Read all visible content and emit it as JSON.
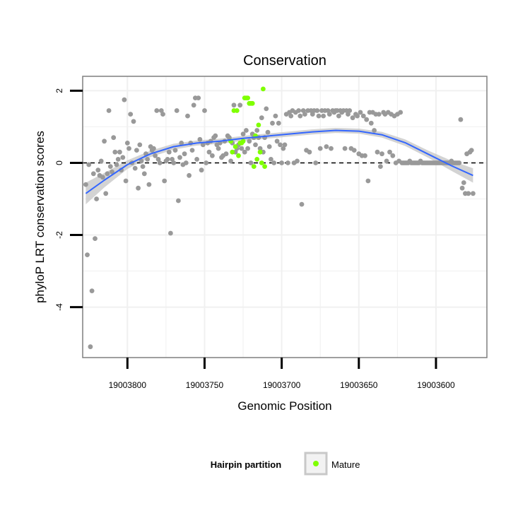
{
  "chart_data": {
    "type": "scatter",
    "title": "Conservation",
    "xlabel": "Genomic Position",
    "ylabel": "phyloP LRT conservation scores",
    "x_reversed": true,
    "xlim": [
      19003829,
      19003567
    ],
    "ylim": [
      -5.4,
      2.4
    ],
    "x_ticks": [
      19003800,
      19003750,
      19003700,
      19003650,
      19003600
    ],
    "x_tick_labels": [
      "19003800",
      "19003750",
      "19003700",
      "19003650",
      "19003600"
    ],
    "y_ticks": [
      2,
      0,
      -2,
      -4
    ],
    "y_tick_labels": [
      "2",
      "0",
      "-2",
      "-4"
    ],
    "grid": true,
    "reference_line": {
      "y": 0,
      "style": "dashed",
      "color": "#000000"
    },
    "colors": {
      "other": "#999999",
      "mature": "#7fff00",
      "smooth": "#3366ff",
      "band": "#c4c4c4",
      "panel_border": "#7f7f7f",
      "grid": "#f0f0f0"
    },
    "legend": {
      "title": "Hairpin partition",
      "position": "bottom",
      "entries": [
        {
          "label": "Mature",
          "color": "#7fff00"
        }
      ]
    },
    "series": [
      {
        "name": "Other",
        "color": "#999999",
        "points": [
          [
            19003827,
            -0.6
          ],
          [
            19003826,
            -2.55
          ],
          [
            19003825,
            -0.05
          ],
          [
            19003824,
            -5.1
          ],
          [
            19003823,
            -3.55
          ],
          [
            19003822,
            -0.3
          ],
          [
            19003821,
            -2.1
          ],
          [
            19003820,
            -1.0
          ],
          [
            19003819,
            -0.2
          ],
          [
            19003818,
            -0.35
          ],
          [
            19003817,
            0.05
          ],
          [
            19003816,
            -0.4
          ],
          [
            19003815,
            0.6
          ],
          [
            19003814,
            -0.85
          ],
          [
            19003813,
            -0.3
          ],
          [
            19003812,
            1.45
          ],
          [
            19003811,
            -0.1
          ],
          [
            19003810,
            -0.25
          ],
          [
            19003809,
            0.7
          ],
          [
            19003808,
            0.3
          ],
          [
            19003807,
            -0.05
          ],
          [
            19003806,
            0.1
          ],
          [
            19003805,
            0.3
          ],
          [
            19003804,
            -0.2
          ],
          [
            19003803,
            0.15
          ],
          [
            19003802,
            1.75
          ],
          [
            19003801,
            -0.5
          ],
          [
            19003800,
            0.55
          ],
          [
            19003799,
            0.4
          ],
          [
            19003798,
            1.35
          ],
          [
            19003797,
            0.0
          ],
          [
            19003796,
            1.15
          ],
          [
            19003795,
            -0.15
          ],
          [
            19003794,
            0.35
          ],
          [
            19003793,
            -0.7
          ],
          [
            19003792,
            0.5
          ],
          [
            19003791,
            0.05
          ],
          [
            19003790,
            -0.1
          ],
          [
            19003789,
            -0.3
          ],
          [
            19003788,
            0.25
          ],
          [
            19003787,
            0.1
          ],
          [
            19003786,
            -0.6
          ],
          [
            19003785,
            0.45
          ],
          [
            19003784,
            0.35
          ],
          [
            19003783,
            0.4
          ],
          [
            19003782,
            0.2
          ],
          [
            19003781,
            1.45
          ],
          [
            19003780,
            0.1
          ],
          [
            19003779,
            0.0
          ],
          [
            19003778,
            1.45
          ],
          [
            19003777,
            1.35
          ],
          [
            19003776,
            -0.5
          ],
          [
            19003775,
            0.05
          ],
          [
            19003774,
            0.1
          ],
          [
            19003773,
            0.3
          ],
          [
            19003772,
            -1.95
          ],
          [
            19003771,
            0.1
          ],
          [
            19003770,
            0.0
          ],
          [
            19003769,
            0.35
          ],
          [
            19003768,
            1.45
          ],
          [
            19003767,
            -1.05
          ],
          [
            19003766,
            0.15
          ],
          [
            19003765,
            0.55
          ],
          [
            19003764,
            -0.05
          ],
          [
            19003763,
            0.25
          ],
          [
            19003762,
            0.0
          ],
          [
            19003761,
            1.3
          ],
          [
            19003760,
            -0.35
          ],
          [
            19003759,
            0.55
          ],
          [
            19003758,
            0.35
          ],
          [
            19003757,
            1.6
          ],
          [
            19003756,
            1.8
          ],
          [
            19003755,
            0.1
          ],
          [
            19003754,
            1.8
          ],
          [
            19003753,
            0.65
          ],
          [
            19003752,
            -0.2
          ],
          [
            19003751,
            0.5
          ],
          [
            19003750,
            1.45
          ],
          [
            19003749,
            0.0
          ],
          [
            19003748,
            0.55
          ],
          [
            19003747,
            0.3
          ],
          [
            19003746,
            0.6
          ],
          [
            19003745,
            0.2
          ],
          [
            19003744,
            0.7
          ],
          [
            19003743,
            0.75
          ],
          [
            19003742,
            0.5
          ],
          [
            19003741,
            0.4
          ],
          [
            19003740,
            0.55
          ],
          [
            19003739,
            0.15
          ],
          [
            19003738,
            0.2
          ],
          [
            19003737,
            0.6
          ],
          [
            19003736,
            0.25
          ],
          [
            19003735,
            0.75
          ],
          [
            19003734,
            0.7
          ],
          [
            19003733,
            0.05
          ],
          [
            19003732,
            0.55
          ],
          [
            19003731,
            1.6
          ],
          [
            19003730,
            0.3
          ],
          [
            19003729,
            0.4
          ],
          [
            19003728,
            0.5
          ],
          [
            19003727,
            1.6
          ],
          [
            19003726,
            0.4
          ],
          [
            19003725,
            0.8
          ],
          [
            19003724,
            0.3
          ],
          [
            19003723,
            0.9
          ],
          [
            19003722,
            0.4
          ],
          [
            19003721,
            0.6
          ],
          [
            19003720,
            0.0
          ],
          [
            19003719,
            0.8
          ],
          [
            19003718,
            0.7
          ],
          [
            19003717,
            0.5
          ],
          [
            19003716,
            0.9
          ],
          [
            19003715,
            0.7
          ],
          [
            19003714,
            0.4
          ],
          [
            19003713,
            1.25
          ],
          [
            19003712,
            0.3
          ],
          [
            19003711,
            0.7
          ],
          [
            19003710,
            1.5
          ],
          [
            19003709,
            0.85
          ],
          [
            19003708,
            0.45
          ],
          [
            19003707,
            0.1
          ],
          [
            19003706,
            1.1
          ],
          [
            19003705,
            0.0
          ],
          [
            19003704,
            1.3
          ],
          [
            19003703,
            0.6
          ],
          [
            19003702,
            1.1
          ],
          [
            19003701,
            0.5
          ],
          [
            19003700,
            0.0
          ],
          [
            19003699,
            0.4
          ],
          [
            19003698,
            0.5
          ],
          [
            19003697,
            1.35
          ],
          [
            19003696,
            0.0
          ],
          [
            19003695,
            1.4
          ],
          [
            19003694,
            1.3
          ],
          [
            19003693,
            1.45
          ],
          [
            19003692,
            0.0
          ],
          [
            19003691,
            1.4
          ],
          [
            19003690,
            0.05
          ],
          [
            19003689,
            1.45
          ],
          [
            19003688,
            1.3
          ],
          [
            19003687,
            -1.15
          ],
          [
            19003686,
            1.45
          ],
          [
            19003685,
            1.35
          ],
          [
            19003684,
            0.35
          ],
          [
            19003683,
            1.45
          ],
          [
            19003682,
            0.3
          ],
          [
            19003681,
            1.45
          ],
          [
            19003680,
            1.35
          ],
          [
            19003679,
            1.45
          ],
          [
            19003678,
            0.0
          ],
          [
            19003677,
            1.45
          ],
          [
            19003676,
            1.3
          ],
          [
            19003675,
            0.4
          ],
          [
            19003674,
            1.45
          ],
          [
            19003673,
            1.3
          ],
          [
            19003672,
            1.45
          ],
          [
            19003671,
            0.45
          ],
          [
            19003670,
            1.45
          ],
          [
            19003669,
            1.35
          ],
          [
            19003668,
            0.4
          ],
          [
            19003667,
            1.45
          ],
          [
            19003666,
            1.4
          ],
          [
            19003665,
            1.45
          ],
          [
            19003664,
            1.45
          ],
          [
            19003663,
            1.3
          ],
          [
            19003662,
            1.45
          ],
          [
            19003661,
            1.4
          ],
          [
            19003660,
            1.45
          ],
          [
            19003659,
            0.4
          ],
          [
            19003658,
            1.45
          ],
          [
            19003657,
            1.35
          ],
          [
            19003656,
            1.45
          ],
          [
            19003655,
            0.4
          ],
          [
            19003654,
            1.25
          ],
          [
            19003653,
            0.35
          ],
          [
            19003652,
            1.35
          ],
          [
            19003651,
            1.3
          ],
          [
            19003650,
            0.25
          ],
          [
            19003649,
            1.4
          ],
          [
            19003648,
            0.2
          ],
          [
            19003647,
            1.3
          ],
          [
            19003646,
            0.2
          ],
          [
            19003645,
            1.2
          ],
          [
            19003644,
            -0.5
          ],
          [
            19003643,
            1.4
          ],
          [
            19003642,
            1.1
          ],
          [
            19003641,
            1.4
          ],
          [
            19003640,
            0.9
          ],
          [
            19003639,
            1.35
          ],
          [
            19003638,
            0.3
          ],
          [
            19003637,
            1.35
          ],
          [
            19003636,
            -0.1
          ],
          [
            19003635,
            0.25
          ],
          [
            19003634,
            1.4
          ],
          [
            19003633,
            1.35
          ],
          [
            19003632,
            0.05
          ],
          [
            19003631,
            1.4
          ],
          [
            19003630,
            0.3
          ],
          [
            19003629,
            1.35
          ],
          [
            19003628,
            0.2
          ],
          [
            19003627,
            1.3
          ],
          [
            19003626,
            0.0
          ],
          [
            19003625,
            1.35
          ],
          [
            19003624,
            0.05
          ],
          [
            19003623,
            1.4
          ],
          [
            19003622,
            0.0
          ],
          [
            19003621,
            0.0
          ],
          [
            19003620,
            0.0
          ],
          [
            19003619,
            0.0
          ],
          [
            19003618,
            0.0
          ],
          [
            19003617,
            0.05
          ],
          [
            19003616,
            0.0
          ],
          [
            19003615,
            0.0
          ],
          [
            19003614,
            0.0
          ],
          [
            19003613,
            0.0
          ],
          [
            19003612,
            0.0
          ],
          [
            19003611,
            0.0
          ],
          [
            19003610,
            0.05
          ],
          [
            19003609,
            0.0
          ],
          [
            19003608,
            0.0
          ],
          [
            19003607,
            0.0
          ],
          [
            19003606,
            0.0
          ],
          [
            19003605,
            0.0
          ],
          [
            19003604,
            0.0
          ],
          [
            19003603,
            0.0
          ],
          [
            19003602,
            0.0
          ],
          [
            19003601,
            0.0
          ],
          [
            19003600,
            0.0
          ],
          [
            19003599,
            0.0
          ],
          [
            19003598,
            0.0
          ],
          [
            19003597,
            0.0
          ],
          [
            19003596,
            0.0
          ],
          [
            19003595,
            0.0
          ],
          [
            19003594,
            0.0
          ],
          [
            19003593,
            0.0
          ],
          [
            19003592,
            0.0
          ],
          [
            19003591,
            0.0
          ],
          [
            19003590,
            0.05
          ],
          [
            19003589,
            0.0
          ],
          [
            19003588,
            0.0
          ],
          [
            19003587,
            0.0
          ],
          [
            19003586,
            0.0
          ],
          [
            19003585,
            0.0
          ],
          [
            19003584,
            1.2
          ],
          [
            19003583,
            -0.7
          ],
          [
            19003582,
            -0.55
          ],
          [
            19003581,
            -0.85
          ],
          [
            19003580,
            0.25
          ],
          [
            19003579,
            -0.85
          ],
          [
            19003578,
            0.3
          ],
          [
            19003577,
            0.35
          ],
          [
            19003576,
            -0.85
          ]
        ]
      },
      {
        "name": "Mature",
        "color": "#7fff00",
        "points": [
          [
            19003733,
            0.6
          ],
          [
            19003732,
            0.3
          ],
          [
            19003731,
            1.45
          ],
          [
            19003730,
            0.45
          ],
          [
            19003729,
            1.45
          ],
          [
            19003728,
            0.2
          ],
          [
            19003727,
            0.55
          ],
          [
            19003726,
            0.55
          ],
          [
            19003725,
            0.6
          ],
          [
            19003724,
            1.8
          ],
          [
            19003723,
            1.8
          ],
          [
            19003722,
            1.8
          ],
          [
            19003721,
            1.65
          ],
          [
            19003720,
            1.65
          ],
          [
            19003719,
            1.65
          ],
          [
            19003718,
            -0.1
          ],
          [
            19003717,
            0.75
          ],
          [
            19003716,
            0.1
          ],
          [
            19003715,
            1.05
          ],
          [
            19003714,
            0.3
          ],
          [
            19003713,
            0.0
          ],
          [
            19003712,
            2.05
          ],
          [
            19003711,
            -0.1
          ]
        ]
      }
    ],
    "smooth": {
      "method": "loess",
      "x": [
        19003827,
        19003815,
        19003800,
        19003785,
        19003770,
        19003755,
        19003740,
        19003725,
        19003710,
        19003695,
        19003680,
        19003665,
        19003650,
        19003635,
        19003620,
        19003605,
        19003590,
        19003576
      ],
      "y": [
        -0.85,
        -0.48,
        -0.05,
        0.25,
        0.45,
        0.55,
        0.6,
        0.68,
        0.74,
        0.8,
        0.86,
        0.9,
        0.88,
        0.78,
        0.56,
        0.24,
        -0.08,
        -0.35
      ],
      "band_halfwidth": [
        0.3,
        0.2,
        0.12,
        0.09,
        0.08,
        0.07,
        0.07,
        0.07,
        0.07,
        0.07,
        0.07,
        0.07,
        0.07,
        0.08,
        0.09,
        0.1,
        0.14,
        0.2
      ]
    }
  }
}
